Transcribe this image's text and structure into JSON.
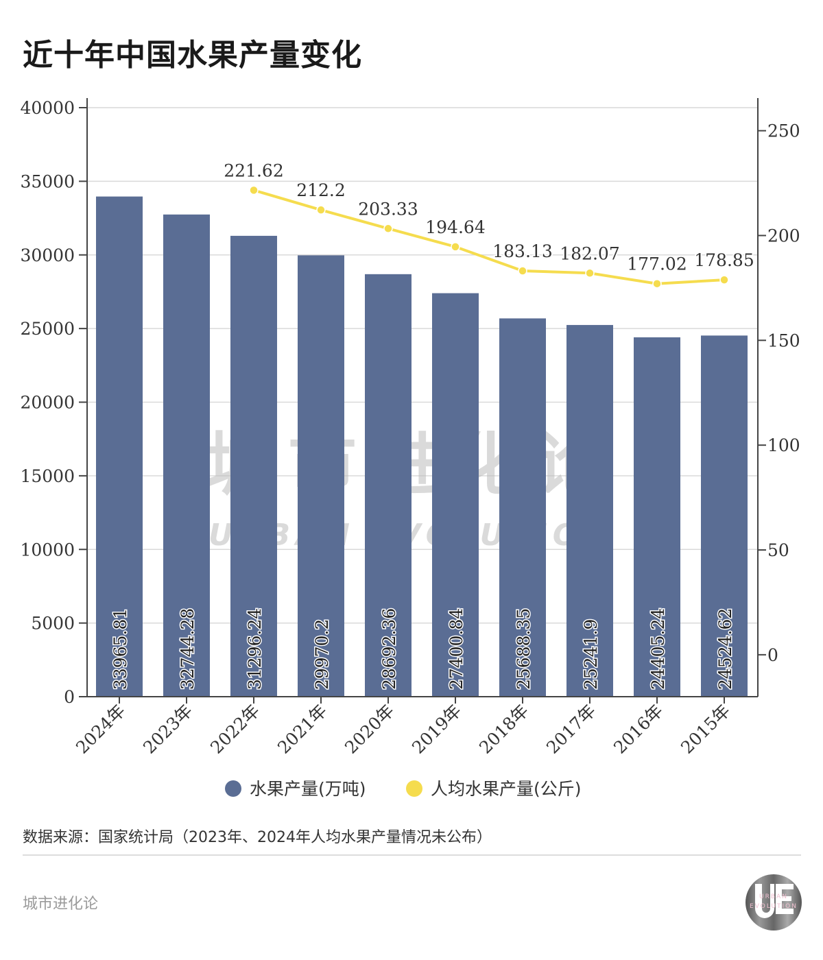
{
  "title": "近十年中国水果产量变化",
  "source": "数据来源：国家统计局（2023年、2024年人均水果产量情况未公布）",
  "footer_brand": "城市进化论",
  "watermark": {
    "cn": "城市进化论",
    "en": "URBAN EVOLUTION"
  },
  "logo": {
    "mark": "UE",
    "line1": "URBAN",
    "line2": "EVOLUTION"
  },
  "chart_data": {
    "type": "bar+line",
    "categories": [
      "2024年",
      "2023年",
      "2022年",
      "2021年",
      "2020年",
      "2019年",
      "2018年",
      "2017年",
      "2016年",
      "2015年"
    ],
    "series": [
      {
        "name": "水果产量(万吨)",
        "type": "bar",
        "axis": "left",
        "color": "#5a6d94",
        "values": [
          33965.81,
          32744.28,
          31296.24,
          29970.2,
          28692.36,
          27400.84,
          25688.35,
          25241.9,
          24405.24,
          24524.62
        ],
        "labels": [
          "33965.81",
          "32744.28",
          "31296.24",
          "29970.2",
          "28692.36",
          "27400.84",
          "25688.35",
          "25241.9",
          "24405.24",
          "24524.62"
        ]
      },
      {
        "name": "人均水果产量(公斤)",
        "type": "line",
        "axis": "right",
        "color": "#f5dc4e",
        "values": [
          null,
          null,
          221.62,
          212.2,
          203.33,
          194.64,
          183.13,
          182.07,
          177.02,
          178.85
        ],
        "labels": [
          "",
          "",
          "221.62",
          "212.2",
          "203.33",
          "194.64",
          "183.13",
          "182.07",
          "177.02",
          "178.85"
        ]
      }
    ],
    "y_left": {
      "lim": [
        0,
        40000
      ],
      "ticks": [
        "0",
        "5000",
        "10000",
        "15000",
        "20000",
        "25000",
        "30000",
        "35000",
        "40000"
      ]
    },
    "y_right": {
      "lim": [
        -20,
        261
      ],
      "ticks": [
        "0",
        "50",
        "100",
        "150",
        "200",
        "250"
      ]
    },
    "grid": true,
    "legend": "bottom"
  }
}
